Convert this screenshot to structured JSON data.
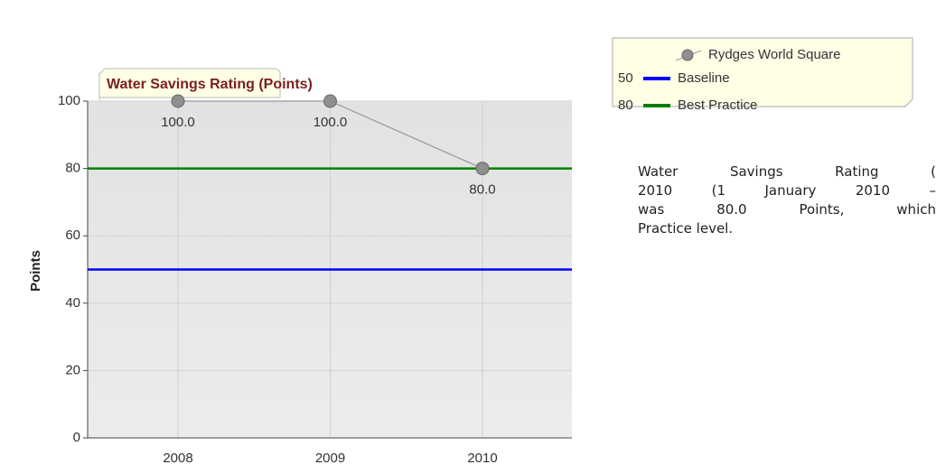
{
  "chart_data": {
    "type": "line",
    "title": "Water Savings Rating (Points)",
    "y_label": "Points",
    "categories": [
      "2008",
      "2009",
      "2010"
    ],
    "series": [
      {
        "name": "Rydges World Square",
        "color": "#999999",
        "values": [
          100,
          100,
          80
        ],
        "value_labels": [
          "100.0",
          "100.0",
          "80.0"
        ]
      }
    ],
    "reference_lines": [
      {
        "name": "Baseline",
        "value": 50,
        "color": "#0000ff"
      },
      {
        "name": "Best Practice",
        "value": 80,
        "color": "#008000"
      }
    ],
    "ylim": [
      0,
      100
    ],
    "yticks": [
      0,
      20,
      40,
      60,
      80,
      100
    ],
    "grid": true,
    "note_lines": [
      "Water Savings Rating (",
      "2010 (1 January 2010 –",
      "was 80.0 Points, which",
      "Practice level."
    ]
  }
}
